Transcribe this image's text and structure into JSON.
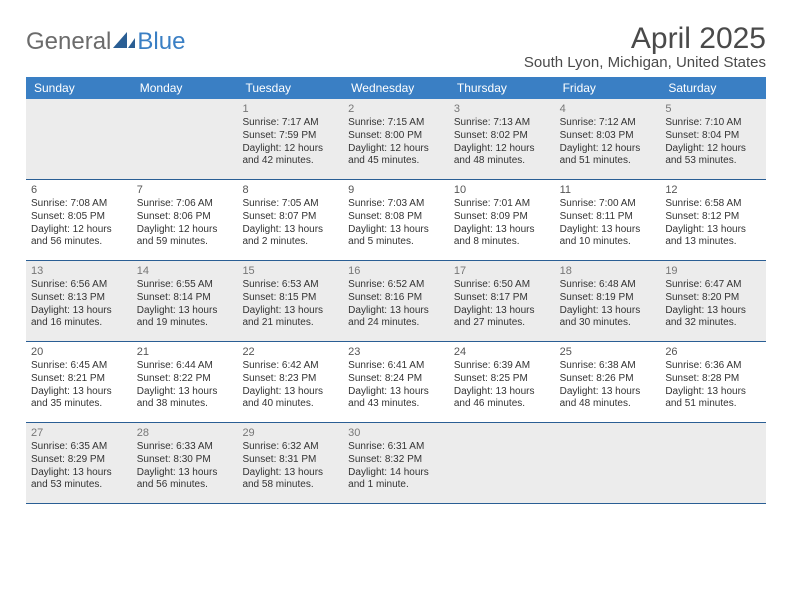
{
  "logo": {
    "general": "General",
    "blue": "Blue"
  },
  "title": {
    "month": "April 2025",
    "location": "South Lyon, Michigan, United States"
  },
  "colors": {
    "header_bg": "#3a7fc4",
    "header_text": "#ffffff",
    "border": "#2a5e94",
    "shade_bg": "#ececec"
  },
  "weekday_names": [
    "Sunday",
    "Monday",
    "Tuesday",
    "Wednesday",
    "Thursday",
    "Friday",
    "Saturday"
  ],
  "weeks": [
    [
      {
        "num": "",
        "lines": []
      },
      {
        "num": "",
        "lines": []
      },
      {
        "num": "1",
        "lines": [
          "Sunrise: 7:17 AM",
          "Sunset: 7:59 PM",
          "Daylight: 12 hours",
          "and 42 minutes."
        ]
      },
      {
        "num": "2",
        "lines": [
          "Sunrise: 7:15 AM",
          "Sunset: 8:00 PM",
          "Daylight: 12 hours",
          "and 45 minutes."
        ]
      },
      {
        "num": "3",
        "lines": [
          "Sunrise: 7:13 AM",
          "Sunset: 8:02 PM",
          "Daylight: 12 hours",
          "and 48 minutes."
        ]
      },
      {
        "num": "4",
        "lines": [
          "Sunrise: 7:12 AM",
          "Sunset: 8:03 PM",
          "Daylight: 12 hours",
          "and 51 minutes."
        ]
      },
      {
        "num": "5",
        "lines": [
          "Sunrise: 7:10 AM",
          "Sunset: 8:04 PM",
          "Daylight: 12 hours",
          "and 53 minutes."
        ]
      }
    ],
    [
      {
        "num": "6",
        "lines": [
          "Sunrise: 7:08 AM",
          "Sunset: 8:05 PM",
          "Daylight: 12 hours",
          "and 56 minutes."
        ]
      },
      {
        "num": "7",
        "lines": [
          "Sunrise: 7:06 AM",
          "Sunset: 8:06 PM",
          "Daylight: 12 hours",
          "and 59 minutes."
        ]
      },
      {
        "num": "8",
        "lines": [
          "Sunrise: 7:05 AM",
          "Sunset: 8:07 PM",
          "Daylight: 13 hours",
          "and 2 minutes."
        ]
      },
      {
        "num": "9",
        "lines": [
          "Sunrise: 7:03 AM",
          "Sunset: 8:08 PM",
          "Daylight: 13 hours",
          "and 5 minutes."
        ]
      },
      {
        "num": "10",
        "lines": [
          "Sunrise: 7:01 AM",
          "Sunset: 8:09 PM",
          "Daylight: 13 hours",
          "and 8 minutes."
        ]
      },
      {
        "num": "11",
        "lines": [
          "Sunrise: 7:00 AM",
          "Sunset: 8:11 PM",
          "Daylight: 13 hours",
          "and 10 minutes."
        ]
      },
      {
        "num": "12",
        "lines": [
          "Sunrise: 6:58 AM",
          "Sunset: 8:12 PM",
          "Daylight: 13 hours",
          "and 13 minutes."
        ]
      }
    ],
    [
      {
        "num": "13",
        "lines": [
          "Sunrise: 6:56 AM",
          "Sunset: 8:13 PM",
          "Daylight: 13 hours",
          "and 16 minutes."
        ]
      },
      {
        "num": "14",
        "lines": [
          "Sunrise: 6:55 AM",
          "Sunset: 8:14 PM",
          "Daylight: 13 hours",
          "and 19 minutes."
        ]
      },
      {
        "num": "15",
        "lines": [
          "Sunrise: 6:53 AM",
          "Sunset: 8:15 PM",
          "Daylight: 13 hours",
          "and 21 minutes."
        ]
      },
      {
        "num": "16",
        "lines": [
          "Sunrise: 6:52 AM",
          "Sunset: 8:16 PM",
          "Daylight: 13 hours",
          "and 24 minutes."
        ]
      },
      {
        "num": "17",
        "lines": [
          "Sunrise: 6:50 AM",
          "Sunset: 8:17 PM",
          "Daylight: 13 hours",
          "and 27 minutes."
        ]
      },
      {
        "num": "18",
        "lines": [
          "Sunrise: 6:48 AM",
          "Sunset: 8:19 PM",
          "Daylight: 13 hours",
          "and 30 minutes."
        ]
      },
      {
        "num": "19",
        "lines": [
          "Sunrise: 6:47 AM",
          "Sunset: 8:20 PM",
          "Daylight: 13 hours",
          "and 32 minutes."
        ]
      }
    ],
    [
      {
        "num": "20",
        "lines": [
          "Sunrise: 6:45 AM",
          "Sunset: 8:21 PM",
          "Daylight: 13 hours",
          "and 35 minutes."
        ]
      },
      {
        "num": "21",
        "lines": [
          "Sunrise: 6:44 AM",
          "Sunset: 8:22 PM",
          "Daylight: 13 hours",
          "and 38 minutes."
        ]
      },
      {
        "num": "22",
        "lines": [
          "Sunrise: 6:42 AM",
          "Sunset: 8:23 PM",
          "Daylight: 13 hours",
          "and 40 minutes."
        ]
      },
      {
        "num": "23",
        "lines": [
          "Sunrise: 6:41 AM",
          "Sunset: 8:24 PM",
          "Daylight: 13 hours",
          "and 43 minutes."
        ]
      },
      {
        "num": "24",
        "lines": [
          "Sunrise: 6:39 AM",
          "Sunset: 8:25 PM",
          "Daylight: 13 hours",
          "and 46 minutes."
        ]
      },
      {
        "num": "25",
        "lines": [
          "Sunrise: 6:38 AM",
          "Sunset: 8:26 PM",
          "Daylight: 13 hours",
          "and 48 minutes."
        ]
      },
      {
        "num": "26",
        "lines": [
          "Sunrise: 6:36 AM",
          "Sunset: 8:28 PM",
          "Daylight: 13 hours",
          "and 51 minutes."
        ]
      }
    ],
    [
      {
        "num": "27",
        "lines": [
          "Sunrise: 6:35 AM",
          "Sunset: 8:29 PM",
          "Daylight: 13 hours",
          "and 53 minutes."
        ]
      },
      {
        "num": "28",
        "lines": [
          "Sunrise: 6:33 AM",
          "Sunset: 8:30 PM",
          "Daylight: 13 hours",
          "and 56 minutes."
        ]
      },
      {
        "num": "29",
        "lines": [
          "Sunrise: 6:32 AM",
          "Sunset: 8:31 PM",
          "Daylight: 13 hours",
          "and 58 minutes."
        ]
      },
      {
        "num": "30",
        "lines": [
          "Sunrise: 6:31 AM",
          "Sunset: 8:32 PM",
          "Daylight: 14 hours",
          "and 1 minute."
        ]
      },
      {
        "num": "",
        "lines": []
      },
      {
        "num": "",
        "lines": []
      },
      {
        "num": "",
        "lines": []
      }
    ]
  ]
}
